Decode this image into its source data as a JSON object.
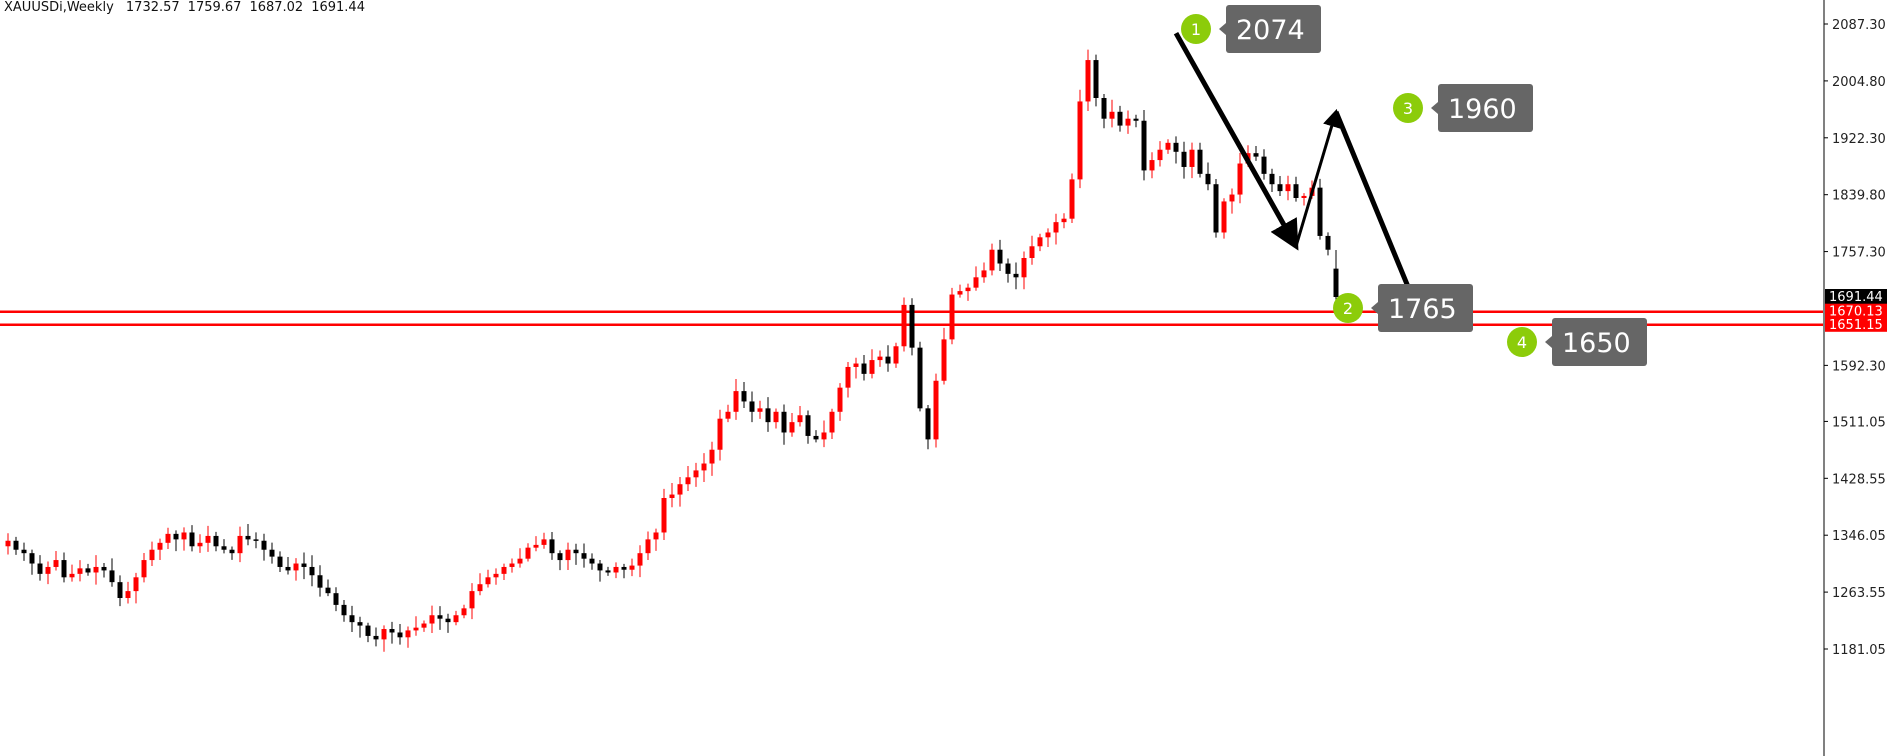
{
  "header": {
    "symbol": "XAUUSDi,Weekly",
    "open": "1732.57",
    "high": "1759.67",
    "low": "1687.02",
    "close": "1691.44"
  },
  "chart_data": {
    "type": "candlestick",
    "title": "",
    "ylim": [
      1170,
      2115
    ],
    "y_ticks": [
      "2087.30",
      "2004.80",
      "1922.30",
      "1839.80",
      "1757.30",
      "1592.30",
      "1511.05",
      "1428.55",
      "1346.05",
      "1263.55",
      "1181.05"
    ],
    "price_tags": [
      {
        "label": "1691.44",
        "value": 1691.44,
        "bg": "#000000",
        "fg": "#ffffff"
      },
      {
        "label": "1670.13",
        "value": 1670.13,
        "bg": "#ff0000",
        "fg": "#ffffff"
      },
      {
        "label": "1651.15",
        "value": 1651.15,
        "bg": "#ff0000",
        "fg": "#ffffff"
      }
    ],
    "horizontal_levels": [
      1670.13,
      1651.15
    ],
    "level_color": "#ff0000",
    "bull_color": "#ff0000",
    "bear_color": "#000000",
    "marker_color": "#8ccc0a",
    "callout_bg": "#666666",
    "closes": [
      1338,
      1325,
      1320,
      1305,
      1290,
      1300,
      1310,
      1285,
      1290,
      1298,
      1292,
      1300,
      1295,
      1278,
      1255,
      1265,
      1285,
      1310,
      1325,
      1335,
      1348,
      1340,
      1350,
      1330,
      1335,
      1345,
      1330,
      1325,
      1320,
      1345,
      1340,
      1338,
      1325,
      1315,
      1300,
      1295,
      1305,
      1300,
      1288,
      1270,
      1262,
      1245,
      1230,
      1220,
      1215,
      1200,
      1195,
      1210,
      1205,
      1198,
      1208,
      1212,
      1218,
      1230,
      1225,
      1220,
      1230,
      1240,
      1265,
      1275,
      1285,
      1290,
      1300,
      1305,
      1312,
      1328,
      1332,
      1340,
      1320,
      1310,
      1325,
      1320,
      1312,
      1305,
      1295,
      1292,
      1300,
      1296,
      1302,
      1320,
      1340,
      1350,
      1400,
      1405,
      1420,
      1430,
      1440,
      1450,
      1470,
      1515,
      1525,
      1555,
      1540,
      1525,
      1530,
      1510,
      1525,
      1495,
      1510,
      1520,
      1490,
      1485,
      1495,
      1525,
      1560,
      1590,
      1595,
      1580,
      1600,
      1605,
      1595,
      1620,
      1680,
      1618,
      1530,
      1485,
      1570,
      1630,
      1695,
      1700,
      1705,
      1720,
      1730,
      1760,
      1740,
      1725,
      1720,
      1748,
      1765,
      1778,
      1785,
      1800,
      1805,
      1862,
      1975,
      2035,
      1980,
      1950,
      1960,
      1940,
      1950,
      1947,
      1875,
      1890,
      1905,
      1915,
      1902,
      1880,
      1905,
      1870,
      1855,
      1785,
      1830,
      1840,
      1885,
      1900,
      1895,
      1870,
      1855,
      1845,
      1855,
      1835,
      1838,
      1850,
      1780,
      1760,
      1691.44
    ],
    "pattern": {
      "points": [
        {
          "label": "1",
          "value": "2074",
          "bar": 146,
          "price": 2074
        },
        {
          "label": "2",
          "value": "1765",
          "bar": 161,
          "price": 1765
        },
        {
          "label": "3",
          "value": "1960",
          "bar": 166,
          "price": 1960
        },
        {
          "label": "4",
          "value": "1650",
          "bar": 177,
          "price": 1650
        }
      ]
    }
  }
}
